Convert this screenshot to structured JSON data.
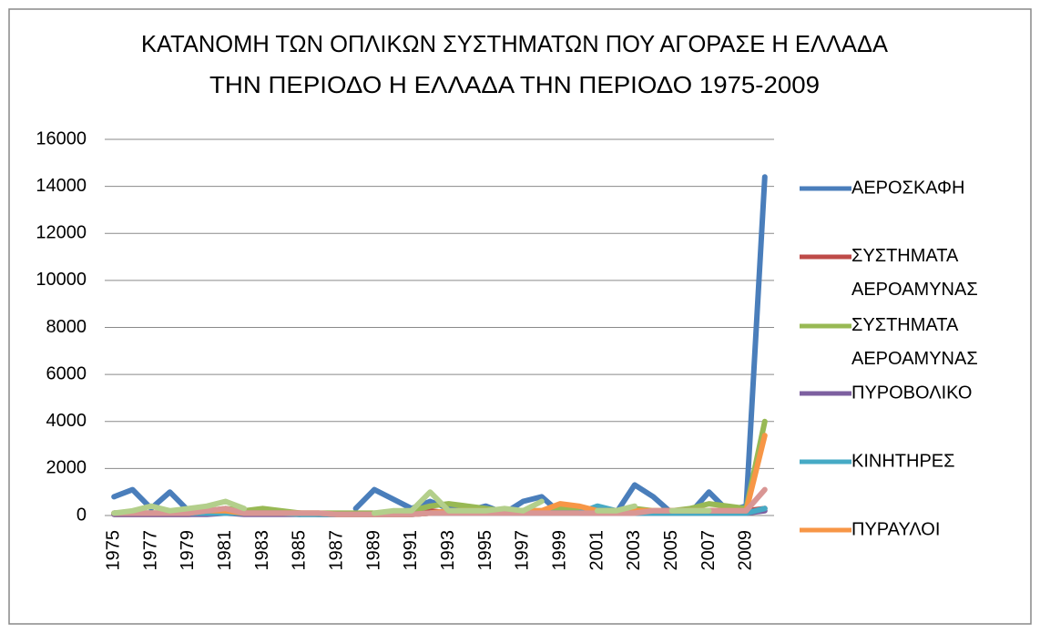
{
  "chart_data": {
    "type": "line",
    "title": [
      "ΚΑΤΑΝΟΜΗ ΤΩΝ ΟΠΛΙΚΩΝ ΣΥΣΤΗΜΑΤΩΝ ΠΟΥ ΑΓΟΡΑΣΕ Η ΕΛΛΑΔΑ",
      "ΤΗΝ ΠΕΡΙΟΔΟ Η ΕΛΛΑΔΑ ΤΗΝ ΠΕΡΙΟΔΟ 1975-2009"
    ],
    "categories": [
      "1975",
      null,
      "1977",
      null,
      "1979",
      null,
      "1981",
      null,
      "1983",
      null,
      "1985",
      null,
      "1987",
      null,
      "1989",
      null,
      "1991",
      null,
      "1993",
      null,
      "1995",
      null,
      "1997",
      null,
      "1999",
      null,
      "2001",
      null,
      "2003",
      null,
      "2005",
      null,
      "2007",
      null,
      "2009",
      null
    ],
    "ylim": [
      0,
      16000
    ],
    "yticks": [
      0,
      2000,
      4000,
      6000,
      8000,
      10000,
      12000,
      14000,
      16000
    ],
    "grid": true,
    "legend": "right",
    "series": [
      {
        "name": "ΑΕΡΟΣΚΑΦΗ",
        "color": "#4a7ebb",
        "values": [
          800,
          1100,
          300,
          1000,
          200,
          200,
          200,
          100,
          100,
          100,
          50,
          null,
          null,
          300,
          1100,
          700,
          300,
          600,
          300,
          200,
          400,
          100,
          600,
          800,
          100,
          200,
          300,
          100,
          1300,
          800,
          100,
          100,
          1000,
          200,
          400,
          14400
        ]
      },
      {
        "name": "ΣΥΣΤΗΜΑΤΑ ΑΕΡΟΑΜΥΝΑΣ",
        "color": "#be4b48",
        "values": [
          50,
          50,
          50,
          50,
          50,
          100,
          200,
          100,
          100,
          100,
          100,
          50,
          50,
          50,
          50,
          50,
          50,
          200,
          100,
          100,
          100,
          100,
          100,
          100,
          200,
          100,
          100,
          100,
          100,
          100,
          100,
          100,
          200,
          200,
          200,
          300
        ]
      },
      {
        "name": "ΣΥΣΤΗΜΑΤΑ ΑΕΡΟΑΜΥΝΑΣ",
        "color": "#98b954",
        "values": [
          100,
          100,
          100,
          100,
          100,
          200,
          300,
          200,
          300,
          200,
          100,
          100,
          100,
          100,
          100,
          100,
          200,
          400,
          500,
          400,
          300,
          200,
          200,
          200,
          300,
          200,
          200,
          200,
          300,
          200,
          200,
          300,
          500,
          400,
          300,
          4000
        ]
      },
      {
        "name": "ΠΥΡΟΒΟΛΙΚΟ",
        "color": "#7d60a0",
        "values": [
          50,
          50,
          50,
          50,
          50,
          50,
          100,
          50,
          50,
          50,
          50,
          50,
          50,
          50,
          50,
          50,
          50,
          100,
          100,
          100,
          100,
          100,
          100,
          100,
          100,
          100,
          100,
          100,
          100,
          100,
          100,
          100,
          100,
          100,
          100,
          200
        ]
      },
      {
        "name": "ΚΙΝΗΤΗΡΕΣ",
        "color": "#46aac5",
        "values": [
          100,
          100,
          100,
          100,
          100,
          100,
          100,
          100,
          100,
          100,
          50,
          50,
          50,
          50,
          50,
          50,
          50,
          100,
          100,
          100,
          100,
          100,
          100,
          100,
          100,
          100,
          400,
          200,
          100,
          100,
          100,
          100,
          100,
          100,
          100,
          300
        ]
      },
      {
        "name": "ΠΥΡΑΥΛΟΙ",
        "color": "#f79646",
        "values": [
          100,
          100,
          100,
          100,
          100,
          200,
          200,
          100,
          100,
          100,
          100,
          100,
          50,
          50,
          50,
          50,
          50,
          100,
          200,
          200,
          200,
          200,
          200,
          200,
          500,
          400,
          200,
          200,
          200,
          200,
          200,
          200,
          200,
          200,
          200,
          3400
        ]
      },
      {
        "color": "#d99694",
        "values": [
          100,
          100,
          100,
          100,
          100,
          200,
          300,
          100,
          100,
          100,
          100,
          100,
          50,
          50,
          50,
          50,
          50,
          100,
          100,
          100,
          100,
          100,
          100,
          100,
          100,
          100,
          100,
          100,
          100,
          200,
          200,
          200,
          200,
          200,
          200,
          1100
        ]
      },
      {
        "color": "#b3cf8b",
        "values": [
          100,
          200,
          400,
          200,
          300,
          400,
          600,
          300,
          null,
          null,
          null,
          null,
          null,
          null,
          100,
          200,
          200,
          1000,
          200,
          200,
          200,
          300,
          200,
          600,
          null,
          null,
          200,
          200,
          400,
          null,
          200,
          200,
          200,
          null,
          null,
          null
        ]
      }
    ]
  }
}
